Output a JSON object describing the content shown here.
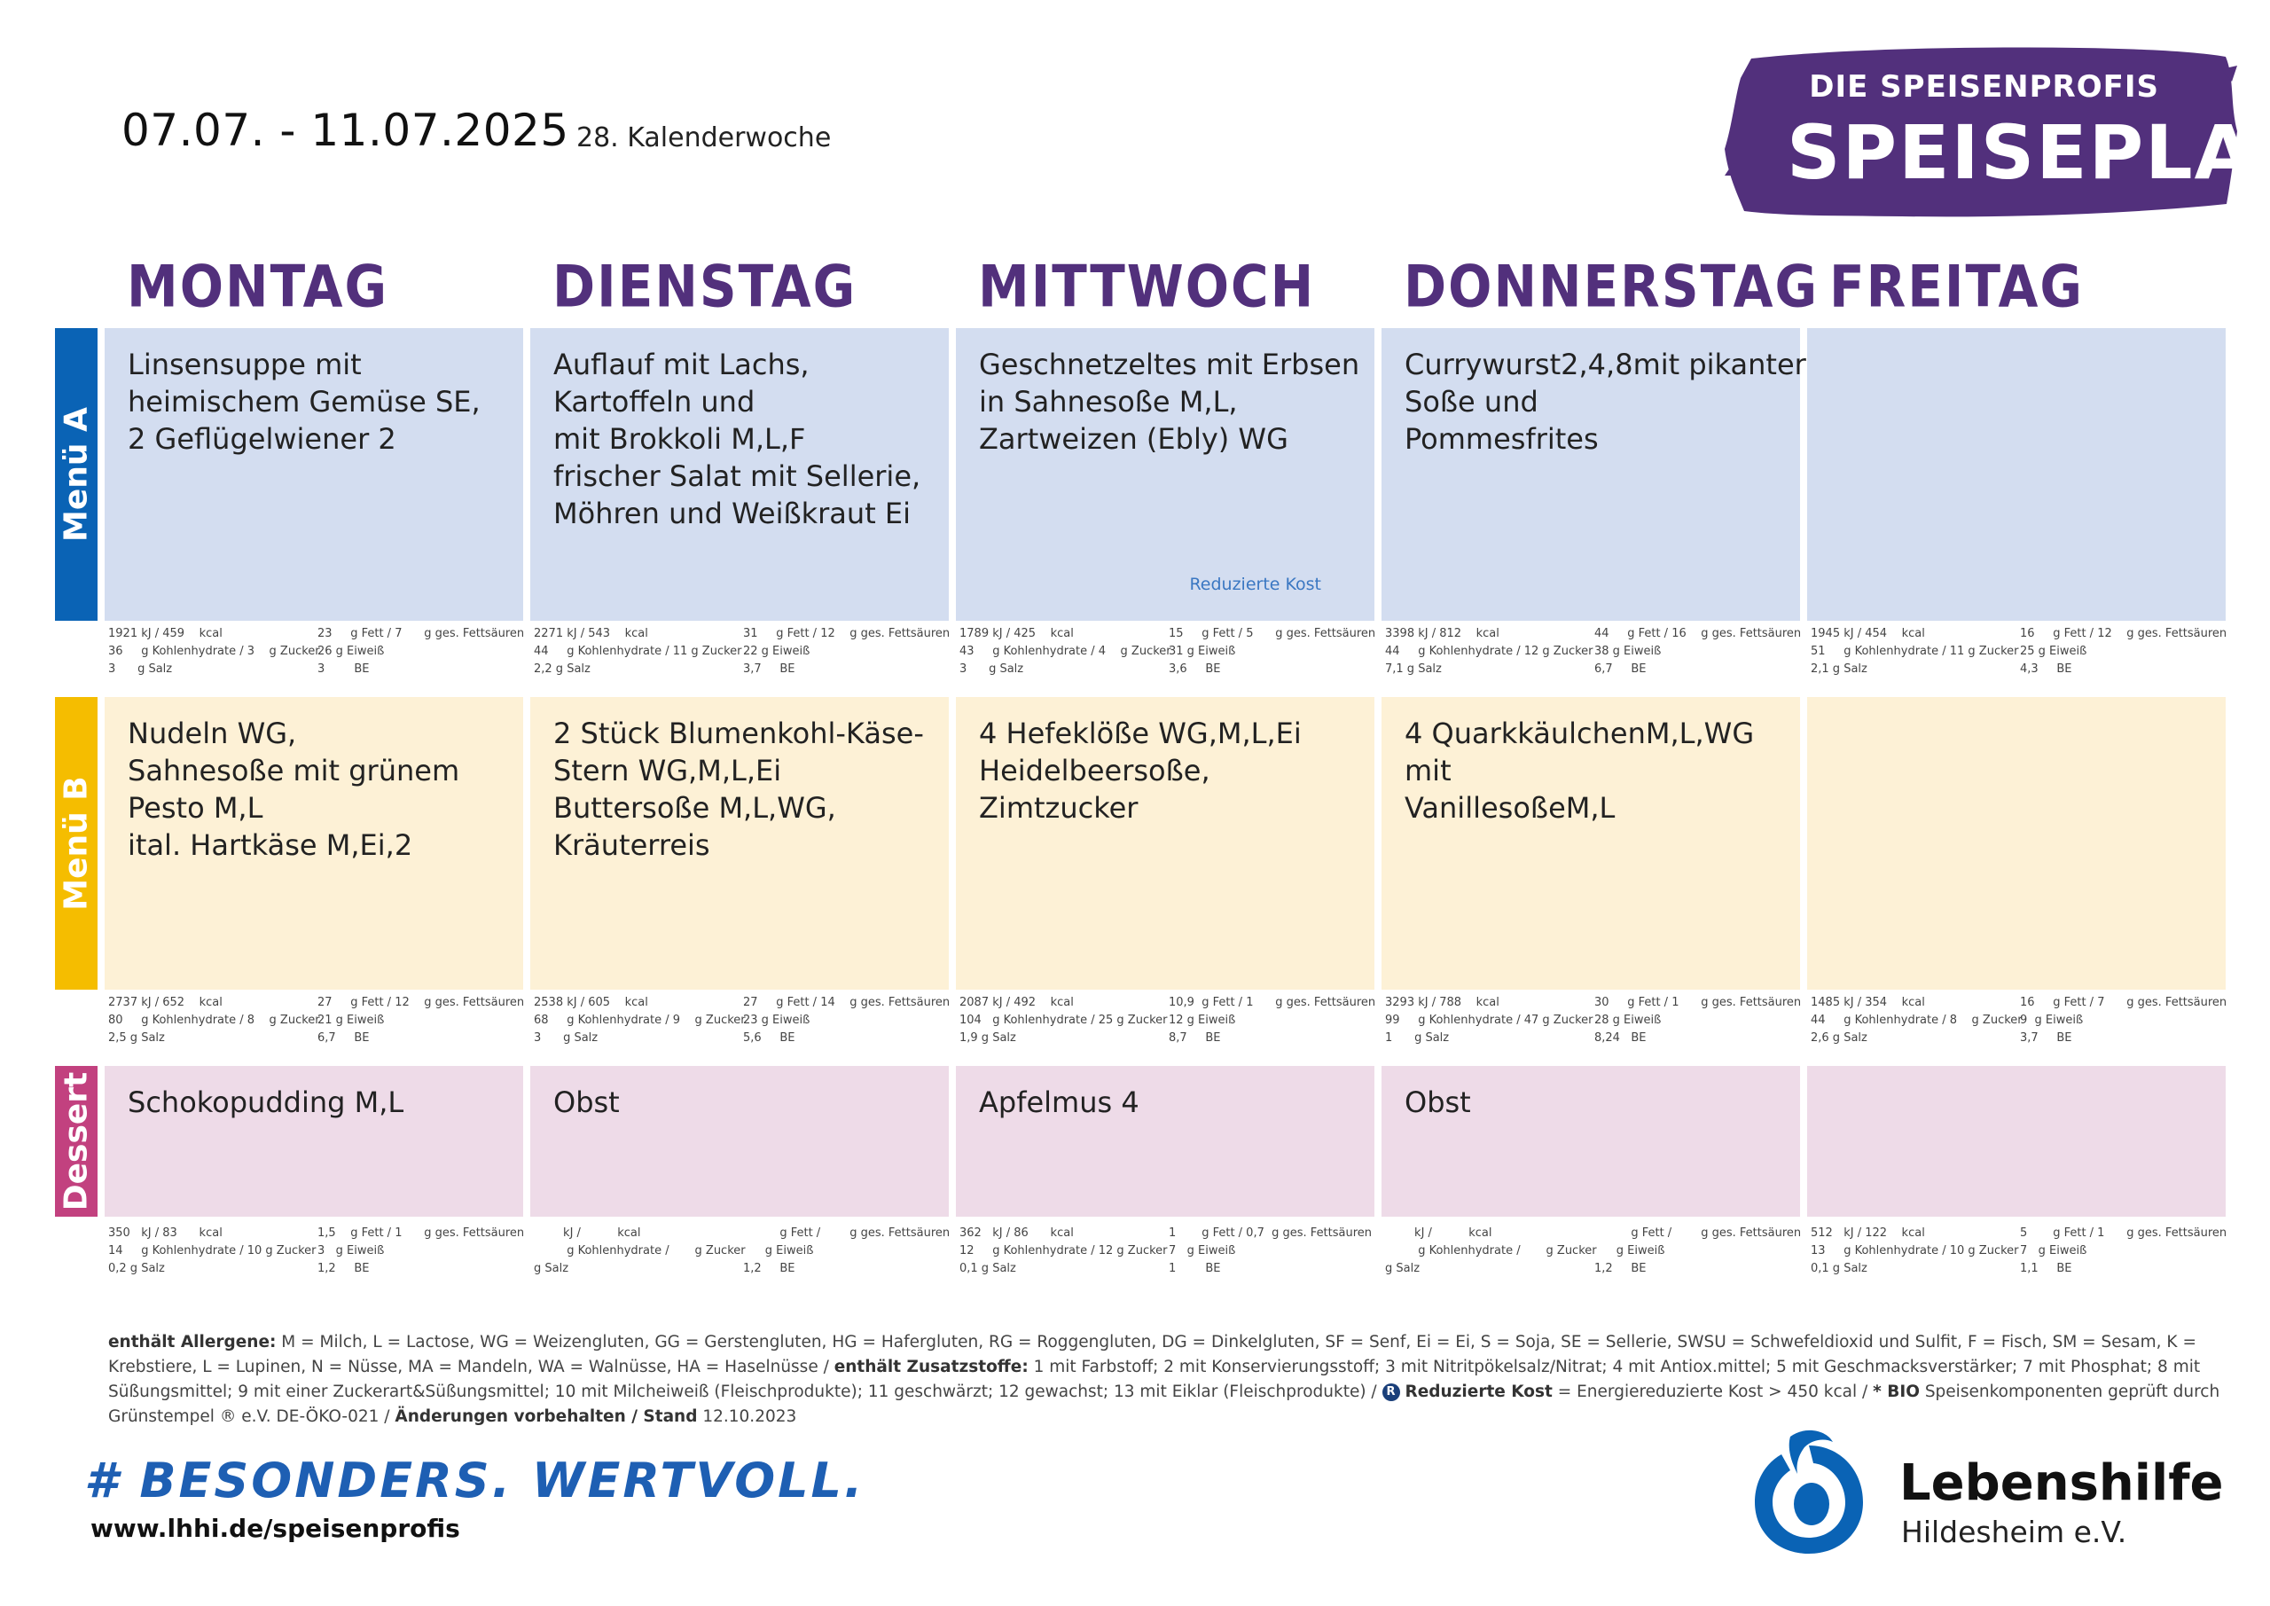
{
  "header": {
    "date_range": "07.07.  - 11.07.2025",
    "week": "28. Kalenderwoche",
    "logo_top": "DIE SPEISENPROFIS",
    "logo_main": "SPEISEPLAN"
  },
  "days": [
    "MONTAG",
    "DIENSTAG",
    "MITTWOCH",
    "DONNERSTAG",
    "FREITAG"
  ],
  "rows": {
    "menu_a": "Menü A",
    "menu_b": "Menü B",
    "dessert": "Dessert"
  },
  "colors": {
    "purple": "#52307c",
    "menu_a_bar": "#0a63b5",
    "menu_b_bar": "#f5bd00",
    "dessert_bar": "#c2417f",
    "menu_a_bg": "#d3ddf0",
    "menu_b_bg": "#fdf1d6",
    "dessert_bg": "#eedbe8"
  },
  "menu_a": [
    {
      "lines": [
        "Linsensuppe mit",
        "heimischem Gemüse SE,",
        "2 Geflügelwiener 2"
      ],
      "nut_left": [
        "1921 kJ / 459    kcal",
        "36     g Kohlenhydrate / 3    g Zucker",
        "3      g Salz"
      ],
      "nut_right": [
        "23     g Fett / 7      g ges. Fettsäuren",
        "26 g Eiweiß",
        "3        BE"
      ]
    },
    {
      "lines": [
        "Auflauf mit Lachs,",
        "Kartoffeln und",
        "mit Brokkoli M,L,F",
        "frischer Salat mit Sellerie,",
        "Möhren und Weißkraut Ei"
      ],
      "nut_left": [
        "2271 kJ / 543    kcal",
        "44     g Kohlenhydrate / 11 g Zucker",
        "2,2 g Salz"
      ],
      "nut_right": [
        "31     g Fett / 12    g ges. Fettsäuren",
        "22 g Eiweiß",
        "3,7     BE"
      ]
    },
    {
      "lines": [
        "Geschnetzeltes mit Erbsen",
        "in Sahnesoße M,L,",
        "Zartweizen (Ebly) WG"
      ],
      "note": "Reduzierte Kost",
      "nut_left": [
        "1789 kJ / 425    kcal",
        "43     g Kohlenhydrate / 4    g Zucker",
        "3      g Salz"
      ],
      "nut_right": [
        "15     g Fett / 5      g ges. Fettsäuren",
        "31 g Eiweiß",
        "3,6     BE"
      ]
    },
    {
      "lines": [
        "Currywurst2,4,8mit pikanter",
        "Soße und",
        "Pommesfrites"
      ],
      "nut_left": [
        "3398 kJ / 812    kcal",
        "44     g Kohlenhydrate / 12 g Zucker",
        "7,1 g Salz"
      ],
      "nut_right": [
        "44     g Fett / 16    g ges. Fettsäuren",
        "38 g Eiweiß",
        "6,7     BE"
      ]
    },
    {
      "lines": [],
      "nut_left": [
        "1945 kJ / 454    kcal",
        "51     g Kohlenhydrate / 11 g Zucker",
        "2,1 g Salz"
      ],
      "nut_right": [
        "16     g Fett / 12    g ges. Fettsäuren",
        "25 g Eiweiß",
        "4,3     BE"
      ]
    }
  ],
  "menu_b": [
    {
      "lines": [
        "Nudeln WG,",
        "Sahnesoße mit grünem",
        "Pesto M,L",
        "ital. Hartkäse M,Ei,2"
      ],
      "nut_left": [
        "2737 kJ / 652    kcal",
        "80     g Kohlenhydrate / 8    g Zucker",
        "2,5 g Salz"
      ],
      "nut_right": [
        "27     g Fett / 12    g ges. Fettsäuren",
        "21 g Eiweiß",
        "6,7     BE"
      ]
    },
    {
      "lines": [
        "2 Stück Blumenkohl-Käse-",
        "Stern WG,M,L,Ei",
        "Buttersoße M,L,WG,",
        "Kräuterreis"
      ],
      "nut_left": [
        "2538 kJ / 605    kcal",
        "68     g Kohlenhydrate / 9    g Zucker",
        "3      g Salz"
      ],
      "nut_right": [
        "27     g Fett / 14    g ges. Fettsäuren",
        "23 g Eiweiß",
        "5,6     BE"
      ]
    },
    {
      "lines": [
        "4 Hefeklöße WG,M,L,Ei",
        "Heidelbeersoße,",
        "Zimtzucker"
      ],
      "nut_left": [
        "2087 kJ / 492    kcal",
        "104   g Kohlenhydrate / 25 g Zucker",
        "1,9 g Salz"
      ],
      "nut_right": [
        "10,9  g Fett / 1      g ges. Fettsäuren",
        "12 g Eiweiß",
        "8,7     BE"
      ]
    },
    {
      "lines": [
        "4 QuarkkäulchenM,L,WG",
        "mit",
        "VanillesoßeM,L"
      ],
      "nut_left": [
        "3293 kJ / 788    kcal",
        "99     g Kohlenhydrate / 47 g Zucker",
        "1      g Salz"
      ],
      "nut_right": [
        "30     g Fett / 1      g ges. Fettsäuren",
        "28 g Eiweiß",
        "8,24   BE"
      ]
    },
    {
      "lines": [],
      "nut_left": [
        "1485 kJ / 354    kcal",
        "44     g Kohlenhydrate / 8    g Zucker",
        "2,6 g Salz"
      ],
      "nut_right": [
        "16     g Fett / 7      g ges. Fettsäuren",
        "9  g Eiweiß",
        "3,7     BE"
      ]
    }
  ],
  "dessert": [
    {
      "lines": [
        "Schokopudding M,L"
      ],
      "nut_left": [
        "350   kJ / 83      kcal",
        "14     g Kohlenhydrate / 10 g Zucker",
        "0,2 g Salz"
      ],
      "nut_right": [
        "1,5    g Fett / 1      g ges. Fettsäuren",
        "3   g Eiweiß",
        "1,2     BE"
      ]
    },
    {
      "lines": [
        " Obst"
      ],
      "nut_left": [
        "        kJ /          kcal",
        "         g Kohlenhydrate /       g Zucker",
        "g Salz"
      ],
      "nut_right": [
        "          g Fett /        g ges. Fettsäuren",
        "      g Eiweiß",
        "1,2     BE"
      ]
    },
    {
      "lines": [
        "Apfelmus 4"
      ],
      "nut_left": [
        "362   kJ / 86      kcal",
        "12     g Kohlenhydrate / 12 g Zucker",
        "0,1 g Salz"
      ],
      "nut_right": [
        "1       g Fett / 0,7  g ges. Fettsäuren",
        "7   g Eiweiß",
        "1        BE"
      ]
    },
    {
      "lines": [
        "Obst"
      ],
      "nut_left": [
        "        kJ /          kcal",
        "         g Kohlenhydrate /       g Zucker",
        "g Salz"
      ],
      "nut_right": [
        "          g Fett /        g ges. Fettsäuren",
        "      g Eiweiß",
        "1,2     BE"
      ]
    },
    {
      "lines": [],
      "nut_left": [
        "512   kJ / 122    kcal",
        "13     g Kohlenhydrate / 10 g Zucker",
        "0,1 g Salz"
      ],
      "nut_right": [
        "5       g Fett / 1      g ges. Fettsäuren",
        "7   g Eiweiß",
        "1,1     BE"
      ]
    }
  ],
  "legend": {
    "allergene_label": "enthält Allergene:",
    "allergene_text": " M = Milch, L = Lactose, WG = Weizengluten, GG = Gerstengluten, HG = Hafergluten, RG = Roggengluten, DG = Dinkelgluten, SF = Senf, Ei = Ei, S = Soja, SE = Sellerie, SWSU = Schwefeldioxid und Sulfit, F = Fisch, SM = Sesam, K = Krebstiere, L = Lupinen, N = Nüsse, MA = Mandeln, WA = Walnüsse, HA =  Haselnüsse / ",
    "zusatz_label": "enthält Zusatzstoffe:",
    "zusatz_text": " 1 mit Farbstoff; 2 mit Konservierungsstoff; 3 mit Nitritpökelsalz/Nitrat; 4 mit Antiox.mittel; 5 mit Geschmacksverstärker; 7 mit Phosphat; 8 mit Süßungsmittel; 9 mit einer Zuckerart&Süßungsmittel; 10 mit Milcheiweiß (Fleischprodukte); 11 geschwärzt; 12 gewachst; 13 mit Eiklar (Fleischprodukte) / ",
    "r_mark": "R",
    "reduziert_label": "Reduzierte Kost",
    "reduziert_text": " = Energiereduzierte Kost > 450 kcal / ",
    "bio_label": "* BIO",
    "bio_text": " Speisenkomponenten geprüft durch Grünstempel ® e.V. DE-ÖKO-021 / ",
    "stand_label": "Änderungen vorbehalten / Stand",
    "stand_text": "  12.10.2023"
  },
  "footer": {
    "slogan": "# BESONDERS. WERTVOLL.",
    "website": "www.lhhi.de/speisenprofis",
    "org_name": "Lebenshilfe",
    "org_city": "Hildesheim e.V."
  }
}
